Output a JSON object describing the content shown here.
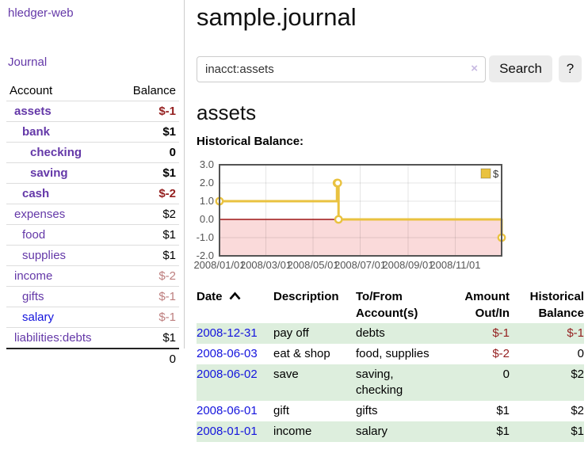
{
  "colors": {
    "link_purple": "#6438a8",
    "link_blue": "#1414dd",
    "negative_strong": "#941f1f",
    "negative_soft": "#bd7e7e",
    "row_stripe_green": "#ddeedd",
    "series_gold": "#e9c240",
    "negative_region_pink": "#fadada",
    "zero_line_red": "#9e1616"
  },
  "sidebar": {
    "app_title": "hledger-web",
    "nav_journal": "Journal",
    "accounts": {
      "header_account": "Account",
      "header_balance": "Balance",
      "rows": [
        {
          "name": "assets",
          "name_class": "ind1 bold",
          "balance": "$-1",
          "balance_class": "bold neg"
        },
        {
          "name": "bank",
          "name_class": "ind2 bold",
          "balance": "$1",
          "balance_class": "bold"
        },
        {
          "name": "checking",
          "name_class": "ind3 bold",
          "balance": "0",
          "balance_class": "bold"
        },
        {
          "name": "saving",
          "name_class": "ind3 bold",
          "balance": "$1",
          "balance_class": "bold"
        },
        {
          "name": "cash",
          "name_class": "ind2 bold",
          "balance": "$-2",
          "balance_class": "bold neg"
        },
        {
          "name": "expenses",
          "name_class": "ind1",
          "balance": "$2",
          "balance_class": ""
        },
        {
          "name": "food",
          "name_class": "ind2",
          "balance": "$1",
          "balance_class": ""
        },
        {
          "name": "supplies",
          "name_class": "ind2",
          "balance": "$1",
          "balance_class": ""
        },
        {
          "name": "income",
          "name_class": "ind1",
          "balance": "$-2",
          "balance_class": "negsoft"
        },
        {
          "name": "gifts",
          "name_class": "ind2",
          "balance": "$-1",
          "balance_class": "negsoft"
        },
        {
          "name": "salary",
          "name_class": "ind2 blue",
          "balance": "$-1",
          "balance_class": "negsoft"
        },
        {
          "name": "liabilities:debts",
          "name_class": "ind1",
          "balance": "$1",
          "balance_class": ""
        }
      ],
      "total": "0"
    }
  },
  "main": {
    "title": "sample.journal",
    "search": {
      "query": "inacct:assets",
      "clear_icon": "×",
      "search_button": "Search",
      "help_button": "?"
    },
    "heading": "assets",
    "chart_title": "Historical Balance:"
  },
  "chart_data": {
    "type": "line",
    "step": true,
    "title": "Historical Balance:",
    "series": [
      {
        "name": "$",
        "color": "#e9c240",
        "points": [
          [
            "2008-01-01",
            1
          ],
          [
            "2008-06-01",
            2
          ],
          [
            "2008-06-02",
            2
          ],
          [
            "2008-06-03",
            0
          ],
          [
            "2008-12-31",
            -1
          ]
        ]
      }
    ],
    "x_range": [
      "2008-01-01",
      "2008-12-31"
    ],
    "x_ticks": [
      "2008/01/01",
      "2008/03/01",
      "2008/05/01",
      "2008/07/01",
      "2008/09/01",
      "2008/11/01"
    ],
    "y_ticks": [
      3.0,
      2.0,
      1.0,
      0.0,
      -1.0,
      -2.0
    ],
    "ylim": [
      -2,
      3
    ],
    "grid": true,
    "legend": {
      "label": "$",
      "position": "top-right"
    },
    "negative_region_fill": "#fadada",
    "zero_line_color": "#9e1616"
  },
  "register": {
    "col_date": "Date",
    "col_description": "Description",
    "col_accounts": "To/From Account(s)",
    "col_amount": "Amount Out/In",
    "col_balance": "Historical Balance",
    "rows": [
      {
        "date": "2008-12-31",
        "description": "pay off",
        "accounts": "debts",
        "amount": "$-1",
        "amount_class": "neg",
        "balance": "$-1",
        "balance_class": "neg"
      },
      {
        "date": "2008-06-03",
        "description": "eat & shop",
        "accounts": "food, supplies",
        "amount": "$-2",
        "amount_class": "neg",
        "balance": "0",
        "balance_class": ""
      },
      {
        "date": "2008-06-02",
        "description": "save",
        "accounts": "saving,\nchecking",
        "amount": "0",
        "amount_class": "",
        "balance": "$2",
        "balance_class": ""
      },
      {
        "date": "2008-06-01",
        "description": "gift",
        "accounts": "gifts",
        "amount": "$1",
        "amount_class": "",
        "balance": "$2",
        "balance_class": ""
      },
      {
        "date": "2008-01-01",
        "description": "income",
        "accounts": "salary",
        "amount": "$1",
        "amount_class": "",
        "balance": "$1",
        "balance_class": ""
      }
    ]
  }
}
